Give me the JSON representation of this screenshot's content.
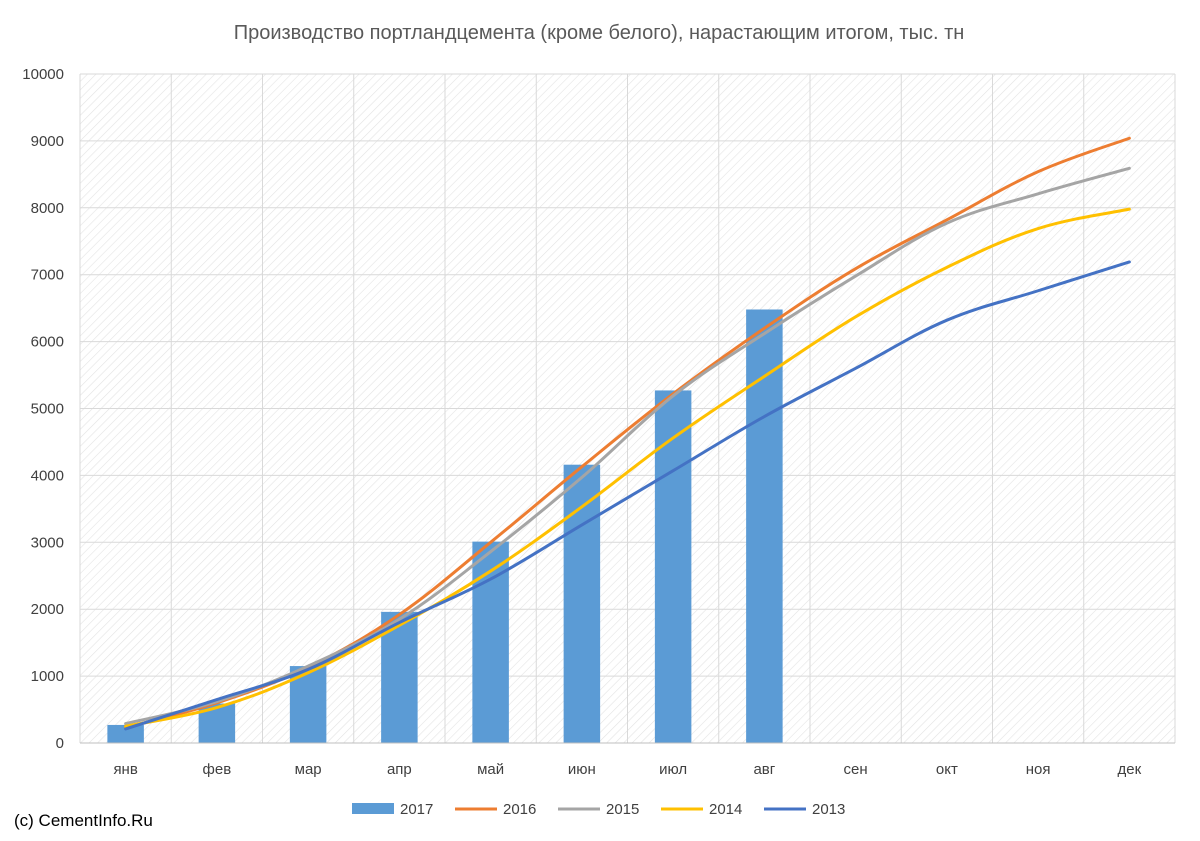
{
  "credit": "(c) CementInfo.Ru",
  "chart_data": {
    "type": "bar",
    "title": "Производство портландцемента (кроме белого), нарастающим итогом, тыс. тн",
    "xlabel": "",
    "ylabel": "",
    "categories": [
      "янв",
      "фев",
      "мар",
      "апр",
      "май",
      "июн",
      "июл",
      "авг",
      "сен",
      "окт",
      "ноя",
      "дек"
    ],
    "ylim": [
      0,
      10000
    ],
    "yticks": [
      "0",
      "1000",
      "2000",
      "3000",
      "4000",
      "5000",
      "6000",
      "7000",
      "8000",
      "9000",
      "10000"
    ],
    "grid": true,
    "legend_position": "bottom",
    "series": [
      {
        "name": "2017",
        "kind": "bar",
        "color": "#5b9bd5",
        "values": [
          270,
          590,
          1150,
          1960,
          3010,
          4160,
          5270,
          6480,
          null,
          null,
          null,
          null
        ]
      },
      {
        "name": "2016",
        "kind": "line",
        "color": "#ed7d31",
        "values": [
          230,
          600,
          1130,
          1920,
          3000,
          4130,
          5220,
          6200,
          7090,
          7820,
          8540,
          9040
        ]
      },
      {
        "name": "2015",
        "kind": "line",
        "color": "#a5a5a5",
        "values": [
          290,
          620,
          1150,
          1850,
          2860,
          3970,
          5190,
          6120,
          6980,
          7770,
          8210,
          8590
        ]
      },
      {
        "name": "2014",
        "kind": "line",
        "color": "#ffc000",
        "values": [
          250,
          530,
          1050,
          1760,
          2570,
          3530,
          4560,
          5480,
          6370,
          7110,
          7690,
          7980
        ]
      },
      {
        "name": "2013",
        "kind": "line",
        "color": "#4472c4",
        "values": [
          210,
          650,
          1100,
          1800,
          2450,
          3260,
          4070,
          4880,
          5600,
          6320,
          6760,
          7190
        ]
      }
    ]
  }
}
